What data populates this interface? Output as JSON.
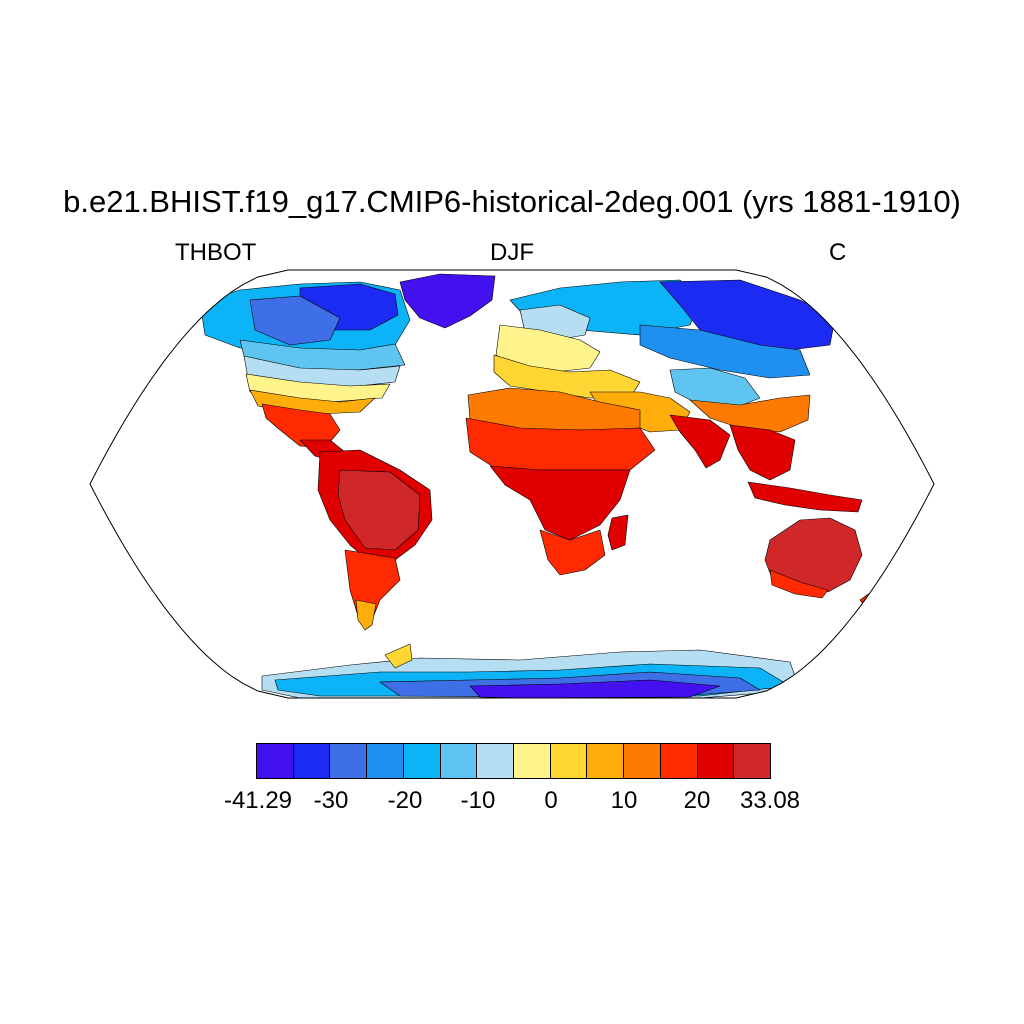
{
  "title": "b.e21.BHIST.f19_g17.CMIP6-historical-2deg.001 (yrs 1881-1910)",
  "left_string": "THBOT",
  "center_string": "DJF",
  "right_string": "C",
  "map": {
    "projection": "robinson",
    "background": "#ffffff",
    "coastline_color": "#000000"
  },
  "colorbar": {
    "min": -41.29,
    "max": 33.08,
    "labels": [
      "-41.29",
      "-30",
      "-20",
      "-10",
      "0",
      "10",
      "20",
      "33.08"
    ],
    "colors": [
      "#4311f0",
      "#1b2bf2",
      "#3f6fe6",
      "#1f8ff0",
      "#0cb3f6",
      "#5fc5f0",
      "#b5def2",
      "#fff48c",
      "#ffd632",
      "#ffad0a",
      "#ff7a00",
      "#ff2a00",
      "#e00000",
      "#d02828"
    ]
  }
}
